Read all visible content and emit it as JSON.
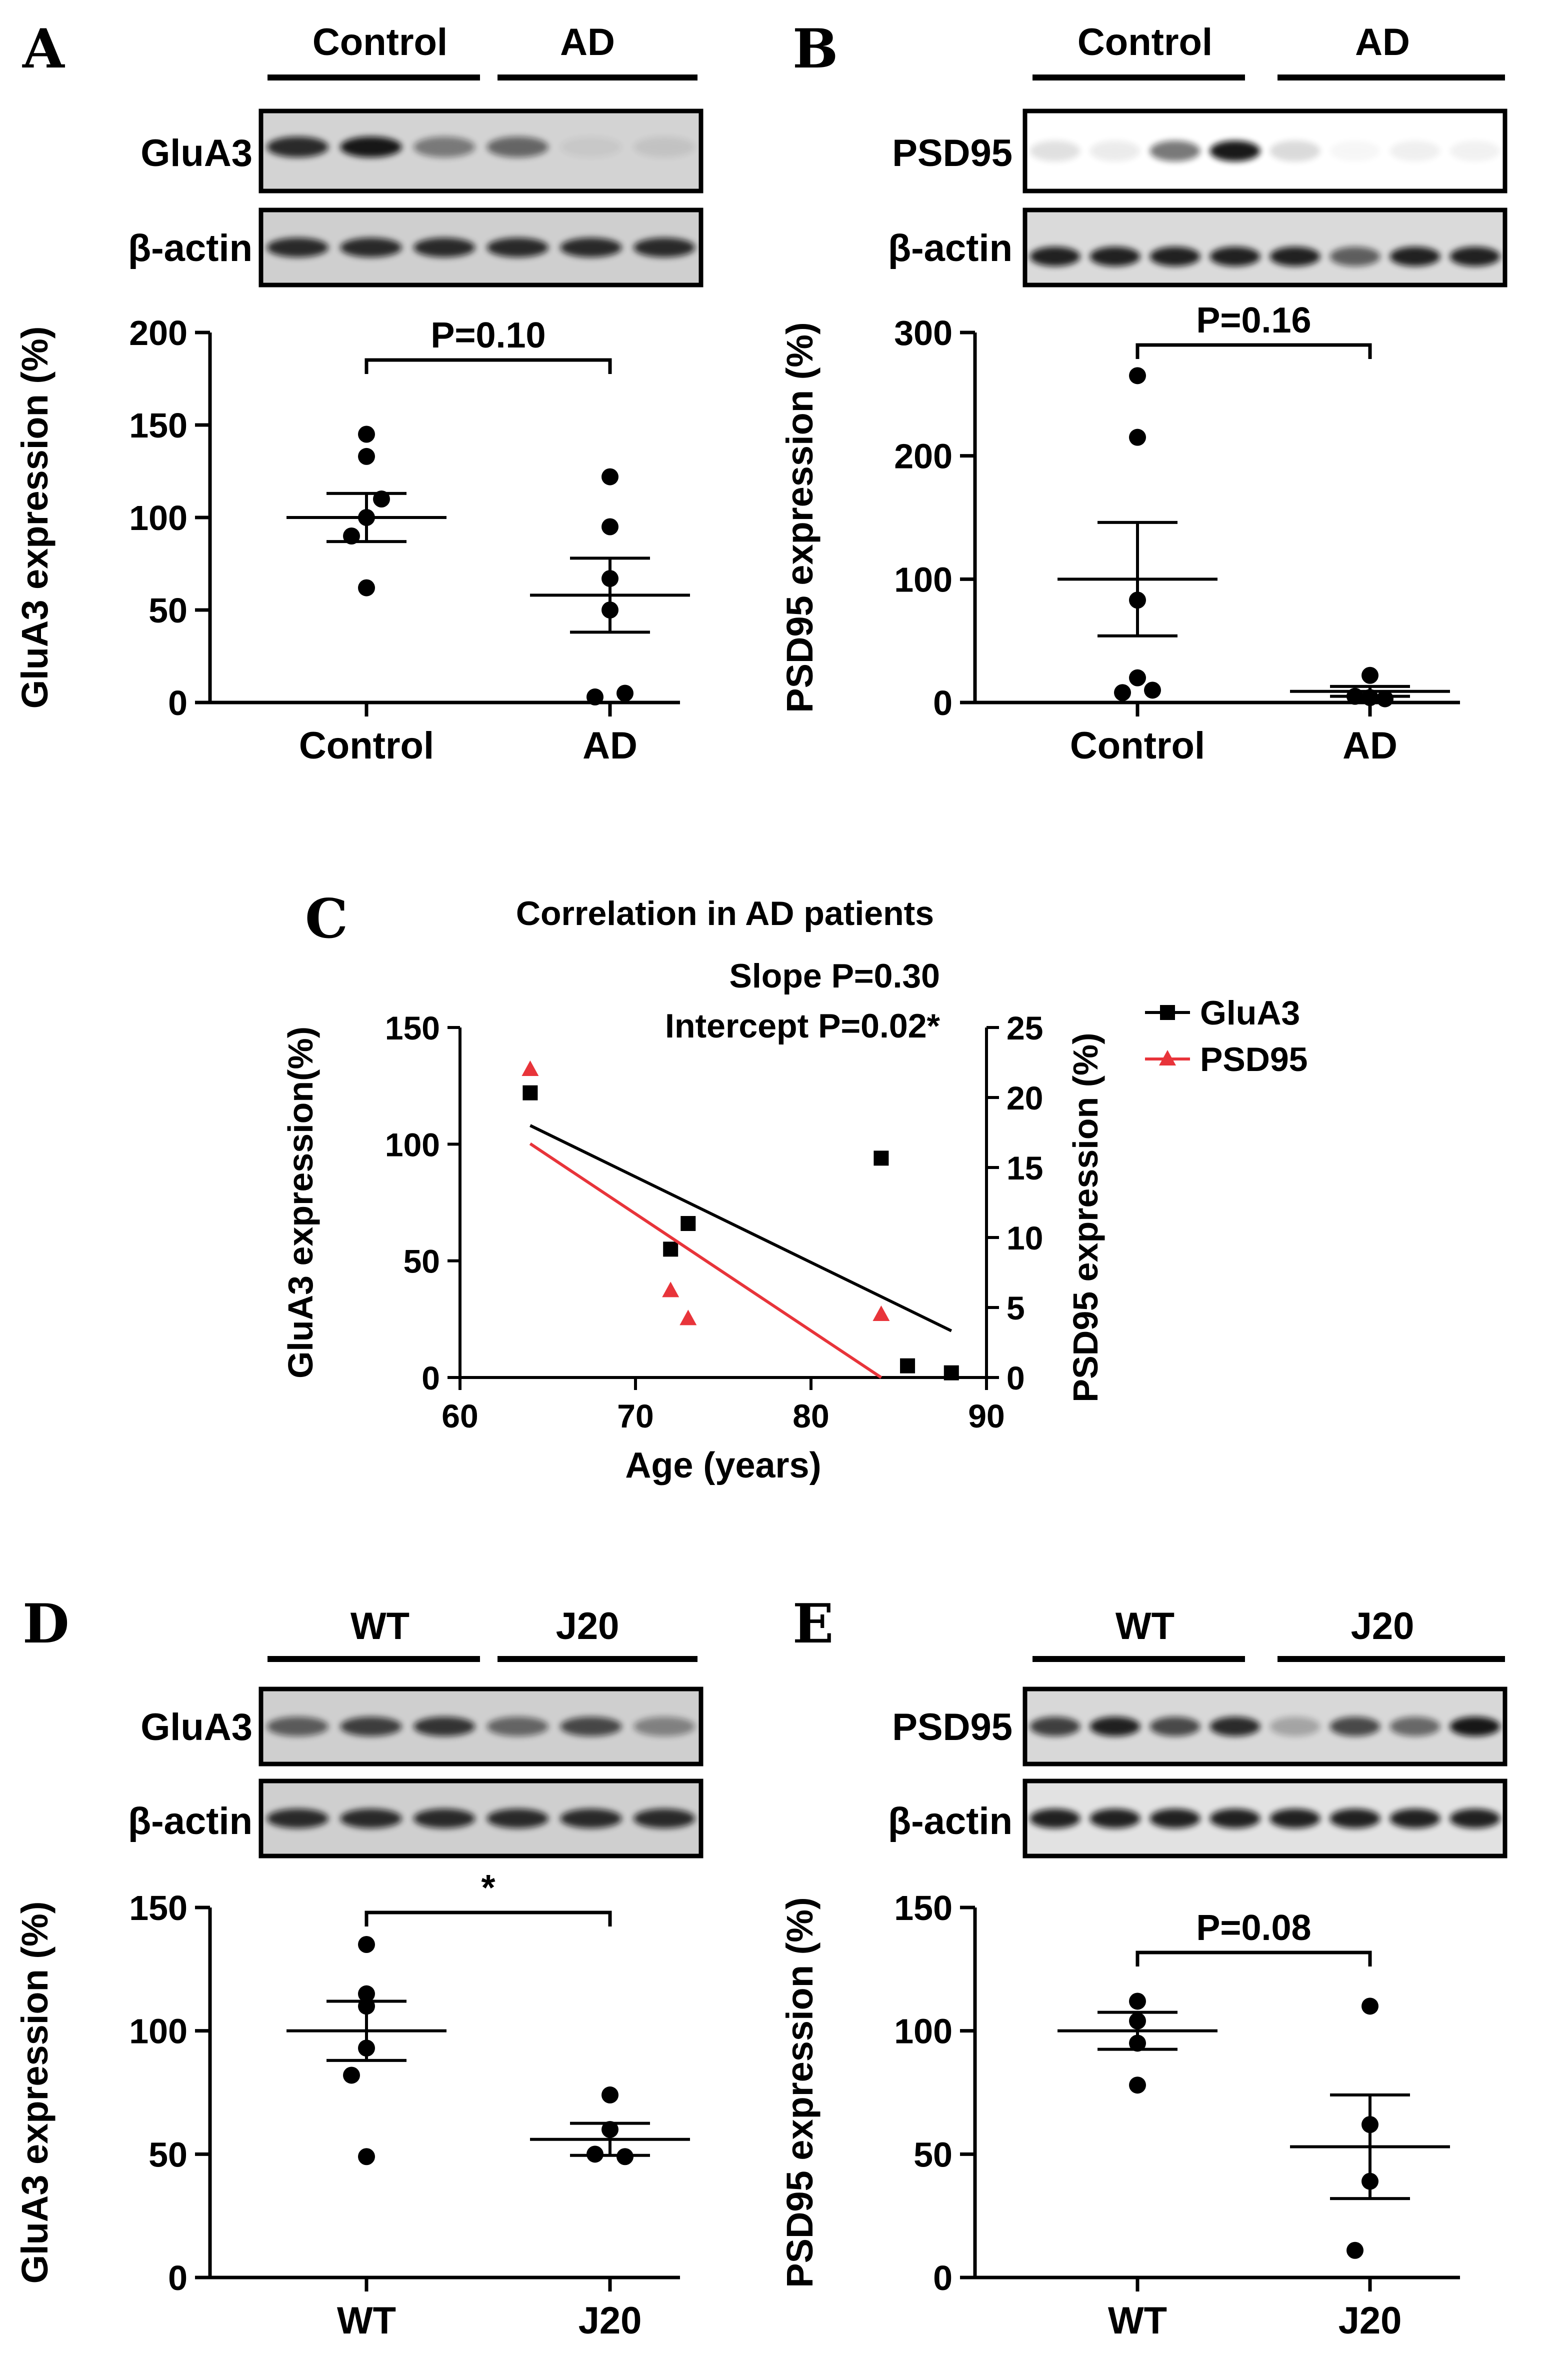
{
  "figure": {
    "panels": [
      {
        "label": "A",
        "groups": [
          "Control",
          "AD"
        ],
        "blots": [
          {
            "name": "GluA3",
            "lanes": [
              0.85,
              0.95,
              0.45,
              0.55,
              0.05,
              0.08
            ]
          },
          {
            "name": "β-actin",
            "lanes": [
              0.85,
              0.85,
              0.85,
              0.85,
              0.85,
              0.85
            ]
          }
        ]
      },
      {
        "label": "B",
        "groups": [
          "Control",
          "AD"
        ],
        "blots": [
          {
            "name": "PSD95",
            "lanes": [
              0.12,
              0.08,
              0.55,
              0.95,
              0.15,
              0.03,
              0.06,
              0.05
            ]
          },
          {
            "name": "β-actin",
            "lanes": [
              0.9,
              0.9,
              0.9,
              0.9,
              0.9,
              0.6,
              0.9,
              0.9
            ]
          }
        ]
      },
      {
        "label": "C"
      },
      {
        "label": "D",
        "groups": [
          "WT",
          "J20"
        ],
        "blots": [
          {
            "name": "GluA3",
            "lanes": [
              0.6,
              0.75,
              0.8,
              0.55,
              0.7,
              0.4
            ]
          },
          {
            "name": "β-actin",
            "lanes": [
              0.85,
              0.85,
              0.85,
              0.85,
              0.85,
              0.85
            ]
          }
        ]
      },
      {
        "label": "E",
        "groups": [
          "WT",
          "J20"
        ],
        "blots": [
          {
            "name": "PSD95",
            "lanes": [
              0.75,
              0.9,
              0.7,
              0.85,
              0.25,
              0.7,
              0.55,
              0.95
            ]
          },
          {
            "name": "β-actin",
            "lanes": [
              0.9,
              0.9,
              0.9,
              0.9,
              0.9,
              0.9,
              0.9,
              0.9
            ]
          }
        ]
      }
    ]
  },
  "chart_data": [
    {
      "panel": "A",
      "type": "scatter",
      "ylabel": "GluA3 expression (%)",
      "categories": [
        "Control",
        "AD"
      ],
      "ylim": [
        0,
        200
      ],
      "yticks": [
        0,
        50,
        100,
        150,
        200
      ],
      "series": [
        {
          "name": "Control",
          "values": [
            145,
            133,
            110,
            100,
            90,
            62
          ],
          "mean": 100,
          "sem": 13
        },
        {
          "name": "AD",
          "values": [
            122,
            95,
            67,
            50,
            5,
            3
          ],
          "mean": 58,
          "sem": 20
        }
      ],
      "annotation": "P=0.10"
    },
    {
      "panel": "B",
      "type": "scatter",
      "ylabel": "PSD95 expression (%)",
      "categories": [
        "Control",
        "AD"
      ],
      "ylim": [
        0,
        300
      ],
      "yticks": [
        0,
        100,
        200,
        300
      ],
      "series": [
        {
          "name": "Control",
          "values": [
            265,
            215,
            83,
            20,
            10,
            8
          ],
          "mean": 100,
          "sem": 46
        },
        {
          "name": "AD",
          "values": [
            22,
            5,
            4,
            3
          ],
          "mean": 9,
          "sem": 4
        }
      ],
      "annotation": "P=0.16"
    },
    {
      "panel": "C",
      "type": "scatter",
      "title": "Correlation in AD patients",
      "annotations": [
        "Slope P=0.30",
        "Intercept P=0.02*"
      ],
      "xlabel": "Age (years)",
      "ylabel": "GluA3 expression(%)",
      "y2label": "PSD95 expression (%)",
      "xlim": [
        60,
        90
      ],
      "xticks": [
        60,
        70,
        80,
        90
      ],
      "ylim": [
        0,
        150
      ],
      "yticks": [
        0,
        50,
        100,
        150
      ],
      "y2lim": [
        0,
        25
      ],
      "y2ticks": [
        0,
        5,
        10,
        15,
        20,
        25
      ],
      "series": [
        {
          "name": "GluA3",
          "axis": "left",
          "color": "#000000",
          "marker": "square",
          "x": [
            64,
            72,
            73,
            84,
            85.5,
            88
          ],
          "y": [
            122,
            55,
            66,
            94,
            5,
            2
          ],
          "fit": {
            "x": [
              64,
              88
            ],
            "y": [
              108,
              20
            ]
          }
        },
        {
          "name": "PSD95",
          "axis": "right",
          "color": "#e8343a",
          "marker": "triangle",
          "x": [
            64,
            72,
            73,
            84
          ],
          "y": [
            22,
            6.2,
            4.2,
            4.5
          ],
          "fit": {
            "x": [
              64,
              84
            ],
            "y": [
              16.7,
              0
            ]
          }
        }
      ]
    },
    {
      "panel": "D",
      "type": "scatter",
      "ylabel": "GluA3 expression (%)",
      "categories": [
        "WT",
        "J20"
      ],
      "ylim": [
        0,
        150
      ],
      "yticks": [
        0,
        50,
        100,
        150
      ],
      "series": [
        {
          "name": "WT",
          "values": [
            135,
            115,
            110,
            93,
            82,
            49
          ],
          "mean": 100,
          "sem": 12
        },
        {
          "name": "J20",
          "values": [
            74,
            60,
            50,
            49
          ],
          "mean": 56,
          "sem": 6.5
        }
      ],
      "annotation": "*"
    },
    {
      "panel": "E",
      "type": "scatter",
      "ylabel": "PSD95 expression (%)",
      "categories": [
        "WT",
        "J20"
      ],
      "ylim": [
        0,
        150
      ],
      "yticks": [
        0,
        50,
        100,
        150
      ],
      "series": [
        {
          "name": "WT",
          "values": [
            112,
            104,
            95,
            78
          ],
          "mean": 100,
          "sem": 7.5
        },
        {
          "name": "J20",
          "values": [
            110,
            62,
            39,
            11
          ],
          "mean": 53,
          "sem": 21
        }
      ],
      "annotation": "P=0.08"
    }
  ]
}
